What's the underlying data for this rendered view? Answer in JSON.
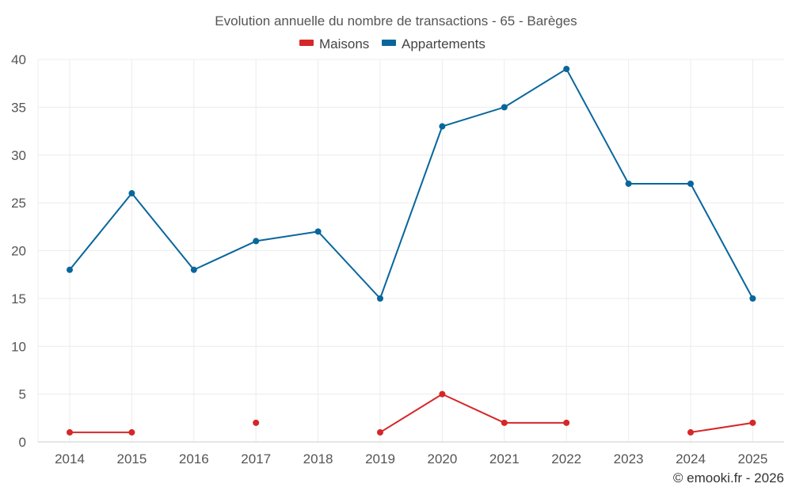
{
  "chart_data": {
    "type": "line",
    "title": "Evolution annuelle du nombre de transactions - 65 - Barèges",
    "xlabel": "",
    "ylabel": "",
    "categories": [
      "2014",
      "2015",
      "2016",
      "2017",
      "2018",
      "2019",
      "2020",
      "2021",
      "2022",
      "2023",
      "2024",
      "2025"
    ],
    "ylim": [
      0,
      40
    ],
    "yticks": [
      0,
      5,
      10,
      15,
      20,
      25,
      30,
      35,
      40
    ],
    "grid": true,
    "legend_position": "top-center",
    "series": [
      {
        "name": "Maisons",
        "color": "#d62728",
        "values": [
          1,
          1,
          null,
          2,
          null,
          1,
          5,
          2,
          2,
          null,
          1,
          2
        ]
      },
      {
        "name": "Appartements",
        "color": "#08669c",
        "values": [
          18,
          26,
          18,
          21,
          22,
          15,
          33,
          35,
          39,
          27,
          27,
          15
        ]
      }
    ]
  },
  "credit": "© emooki.fr - 2026"
}
